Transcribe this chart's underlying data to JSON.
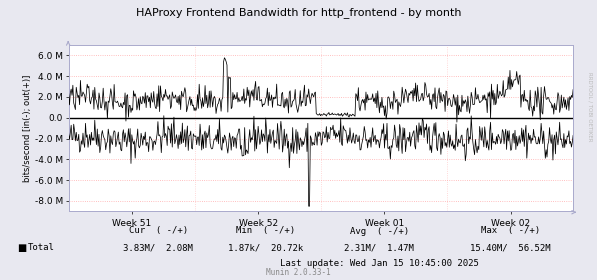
{
  "title": "HAProxy Frontend Bandwidth for http_frontend - by month",
  "ylabel": "bits/second [in(-); out(+)]",
  "watermark": "RRDTOOL / TOBI OETIKER",
  "munin_version": "Munin 2.0.33-1",
  "background_color": "#e8e8f0",
  "plot_bg_color": "#ffffff",
  "grid_h_color": "#ffaaaa",
  "grid_v_color": "#ffcccc",
  "line_color": "#000000",
  "border_color": "#aaaacc",
  "ylim": [
    -9000000,
    7000000
  ],
  "yticks": [
    -8000000,
    -6000000,
    -4000000,
    -2000000,
    0,
    2000000,
    4000000,
    6000000
  ],
  "week_labels": [
    "Week 51",
    "Week 52",
    "Week 01",
    "Week 02"
  ],
  "legend_label": "Total",
  "cur_neg": "3.83M",
  "cur_pos": "2.08M",
  "min_neg": "1.87k",
  "min_pos": "20.72k",
  "avg_neg": "2.31M",
  "avg_pos": "1.47M",
  "max_neg": "15.40M",
  "max_pos": "56.52M",
  "last_update": "Last update: Wed Jan 15 10:45:00 2025"
}
